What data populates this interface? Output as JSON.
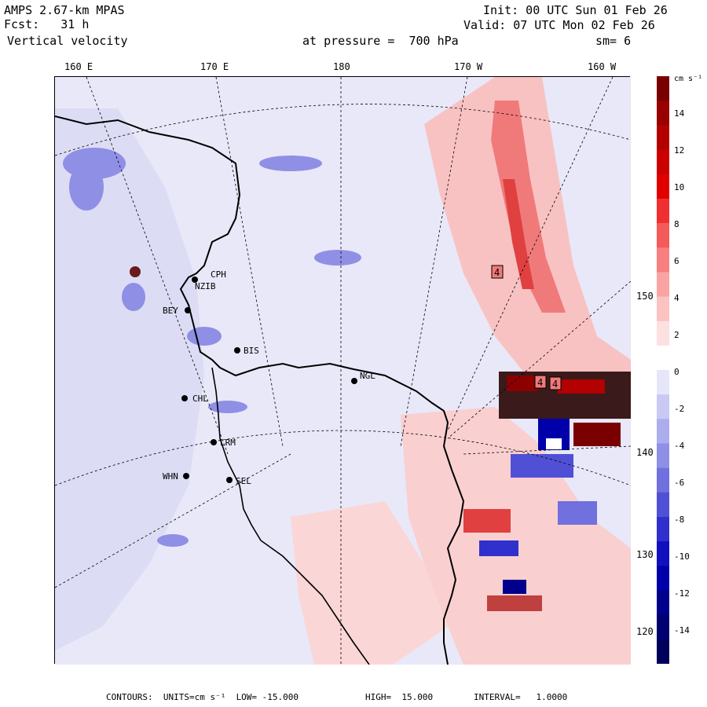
{
  "header": {
    "model": "AMPS 2.67-km MPAS",
    "fcst": "Fcst:   31 h",
    "field": "Vertical velocity",
    "init": "Init: 00 UTC Sun 01 Feb 26",
    "valid": "Valid: 07 UTC Mon 02 Feb 26",
    "pressure": "at pressure =  700 hPa",
    "smooth": "sm= 6"
  },
  "axes": {
    "top_labels": [
      "160 E",
      "170 E",
      "180",
      "170 W",
      "160 W"
    ],
    "right_labels": [
      "150 W",
      "140 W",
      "130 W",
      "120 W"
    ]
  },
  "colorbar": {
    "units": "cm s⁻¹",
    "ticks": [
      "14",
      "12",
      "10",
      "8",
      "6",
      "4",
      "2",
      "0",
      "-2",
      "-4",
      "-6",
      "-8",
      "-10",
      "-12",
      "-14"
    ],
    "colors": [
      "#7a0000",
      "#990000",
      "#b30000",
      "#cc0000",
      "#e00000",
      "#f03030",
      "#f55a5a",
      "#f77f7f",
      "#f9a3a3",
      "#fbc2c2",
      "#fde0e0",
      "#ffffff",
      "#e6e6fa",
      "#c9c9f4",
      "#adadee",
      "#8f8fe6",
      "#7070de",
      "#5050d6",
      "#3030cc",
      "#1010c0",
      "#0000aa",
      "#00008c",
      "#000070",
      "#00005a"
    ]
  },
  "stations": [
    "CPH",
    "NZIB",
    "BEY",
    "BIS",
    "NGL",
    "CHL",
    "LRM",
    "WHN",
    "SEL"
  ],
  "contour_labels": [
    "4",
    "4",
    "4"
  ],
  "footer": {
    "contours": "CONTOURS:  UNITS=cm s⁻¹  LOW= -15.000",
    "high": "HIGH=  15.000",
    "interval": "INTERVAL=   1.0000"
  },
  "palette": {
    "background_blue": "#e8e8f8",
    "updraft": "#f08a8a",
    "downdraft": "#6a6ae0"
  }
}
